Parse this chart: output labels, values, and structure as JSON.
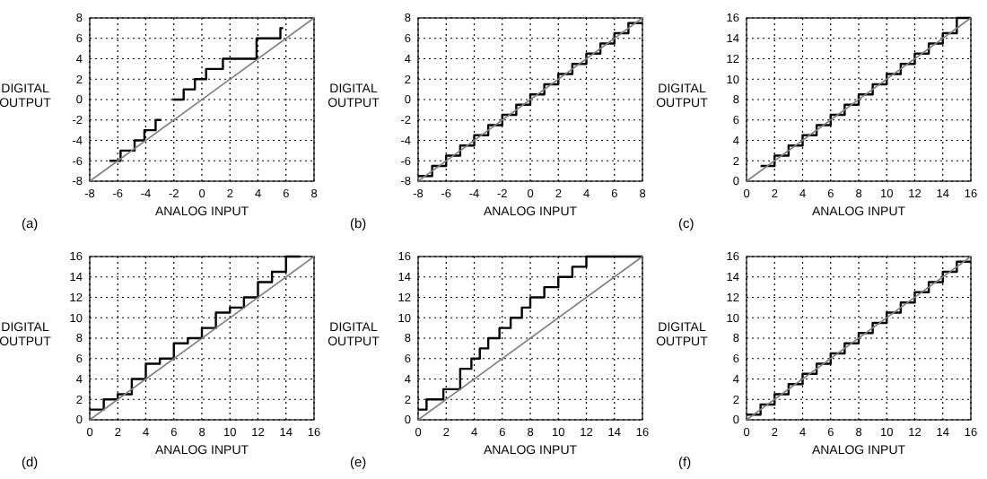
{
  "chart_data": [
    {
      "type": "step",
      "title": "(a)",
      "xlabel": "ANALOG INPUT",
      "ylabel": "DIGITAL OUTPUT",
      "xlim": [
        -8,
        8
      ],
      "ylim": [
        -8,
        8
      ],
      "xticks": [
        -8,
        -6,
        -4,
        -2,
        0,
        2,
        4,
        6,
        8
      ],
      "yticks": [
        -8,
        -6,
        -4,
        -2,
        0,
        2,
        4,
        6,
        8
      ],
      "grid": true,
      "series": [
        {
          "color": "#000000",
          "x": [
            -6.6,
            -5.8,
            -4.8,
            -4.1,
            -3.3,
            -2.9,
            -2.1,
            -1.3,
            -0.5,
            0.3,
            1.5,
            3.9,
            5.6,
            5.8
          ],
          "values": [
            -6,
            -5,
            -4,
            -3,
            -2,
            null,
            0,
            1,
            2,
            3,
            4,
            6,
            7,
            7
          ]
        },
        {
          "type": "line",
          "color": "#808080",
          "x": [
            -8,
            8
          ],
          "values": [
            -8,
            8
          ]
        }
      ]
    },
    {
      "type": "step",
      "title": "(b)",
      "xlabel": "ANALOG INPUT",
      "ylabel": "DIGITAL OUTPUT",
      "xlim": [
        -8,
        8
      ],
      "ylim": [
        -8,
        8
      ],
      "xticks": [
        -8,
        -6,
        -4,
        -2,
        0,
        2,
        4,
        6,
        8
      ],
      "yticks": [
        -8,
        -6,
        -4,
        -2,
        0,
        2,
        4,
        6,
        8
      ],
      "grid": true,
      "series": [
        {
          "color": "#000000",
          "x": [
            -8,
            -7,
            -6,
            -5,
            -4,
            -3,
            -2,
            -1,
            0,
            1,
            2,
            3,
            4,
            5,
            6,
            7,
            8
          ],
          "values": [
            -7.5,
            -6.5,
            -5.5,
            -4.5,
            -3.5,
            -2.5,
            -1.5,
            -0.5,
            0.5,
            1.5,
            2.5,
            3.5,
            4.5,
            5.5,
            6.5,
            7.5,
            7.5
          ]
        },
        {
          "type": "line",
          "color": "#808080",
          "x": [
            -8,
            8
          ],
          "values": [
            -8,
            8
          ]
        }
      ]
    },
    {
      "type": "step",
      "title": "(c)",
      "xlabel": "ANALOG INPUT",
      "ylabel": "DIGITAL OUTPUT",
      "xlim": [
        0,
        16
      ],
      "ylim": [
        0,
        16
      ],
      "xticks": [
        0,
        2,
        4,
        6,
        8,
        10,
        12,
        14,
        16
      ],
      "yticks": [
        0,
        2,
        4,
        6,
        8,
        10,
        12,
        14,
        16
      ],
      "grid": true,
      "series": [
        {
          "color": "#000000",
          "x": [
            1,
            2,
            3,
            4,
            5,
            6,
            7,
            8,
            9,
            10,
            11,
            12,
            13,
            14,
            15,
            16
          ],
          "values": [
            1.5,
            2.5,
            3.5,
            4.5,
            5.5,
            6.5,
            7.5,
            8.5,
            9.5,
            10.5,
            11.5,
            12.5,
            13.5,
            14.5,
            16,
            16
          ]
        },
        {
          "type": "line",
          "color": "#808080",
          "x": [
            0,
            16
          ],
          "values": [
            0,
            16
          ]
        }
      ]
    },
    {
      "type": "step",
      "title": "(d)",
      "xlabel": "ANALOG INPUT",
      "ylabel": "DIGITAL OUTPUT",
      "xlim": [
        0,
        16
      ],
      "ylim": [
        0,
        16
      ],
      "xticks": [
        0,
        2,
        4,
        6,
        8,
        10,
        12,
        14,
        16
      ],
      "yticks": [
        0,
        2,
        4,
        6,
        8,
        10,
        12,
        14,
        16
      ],
      "grid": true,
      "series": [
        {
          "color": "#000000",
          "x": [
            0,
            1,
            2,
            3,
            4,
            5,
            6,
            7,
            8,
            9,
            10,
            11,
            12,
            13,
            14,
            15
          ],
          "values": [
            1,
            2,
            2.5,
            4,
            5.5,
            6,
            7.5,
            8,
            9,
            10.5,
            11,
            12,
            13.5,
            14.5,
            16,
            16
          ]
        },
        {
          "type": "line",
          "color": "#808080",
          "x": [
            0,
            16
          ],
          "values": [
            0,
            16
          ]
        }
      ]
    },
    {
      "type": "step",
      "title": "(e)",
      "xlabel": "ANALOG INPUT",
      "ylabel": "DIGITAL OUTPUT",
      "xlim": [
        0,
        16
      ],
      "ylim": [
        0,
        16
      ],
      "xticks": [
        0,
        2,
        4,
        6,
        8,
        10,
        12,
        14,
        16
      ],
      "yticks": [
        0,
        2,
        4,
        6,
        8,
        10,
        12,
        14,
        16
      ],
      "grid": true,
      "series": [
        {
          "color": "#000000",
          "x": [
            0,
            0.6,
            1.8,
            3,
            3.8,
            4.4,
            5,
            5.8,
            6.6,
            7.4,
            8,
            9,
            10,
            11,
            12,
            16
          ],
          "values": [
            1,
            2,
            3,
            5,
            6,
            7,
            8,
            9,
            10,
            11,
            12,
            13,
            14,
            15,
            16,
            16
          ]
        },
        {
          "type": "line",
          "color": "#808080",
          "x": [
            0,
            16
          ],
          "values": [
            0,
            16
          ]
        }
      ]
    },
    {
      "type": "step",
      "title": "(f)",
      "xlabel": "ANALOG INPUT",
      "ylabel": "DIGITAL OUTPUT",
      "xlim": [
        0,
        16
      ],
      "ylim": [
        0,
        16
      ],
      "xticks": [
        0,
        2,
        4,
        6,
        8,
        10,
        12,
        14,
        16
      ],
      "yticks": [
        0,
        2,
        4,
        6,
        8,
        10,
        12,
        14,
        16
      ],
      "grid": true,
      "series": [
        {
          "color": "#000000",
          "x": [
            0,
            1,
            2,
            3,
            4,
            5,
            6,
            7,
            8,
            9,
            10,
            11,
            12,
            13,
            14,
            15,
            16
          ],
          "values": [
            0.5,
            1.5,
            2.5,
            3.5,
            4.5,
            5.5,
            6.5,
            7.5,
            8.5,
            9.5,
            10.5,
            11.5,
            12.5,
            13.5,
            14.5,
            15.5,
            15.5
          ]
        },
        {
          "type": "line",
          "color": "#808080",
          "x": [
            0,
            16
          ],
          "values": [
            0,
            16
          ]
        }
      ]
    }
  ]
}
